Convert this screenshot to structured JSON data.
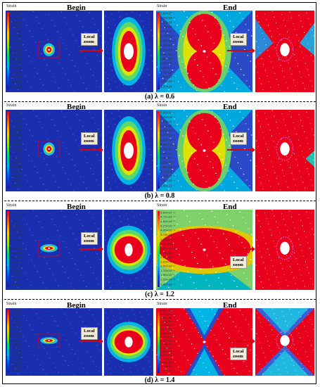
{
  "panels": [
    {
      "begin": "Begin",
      "end": "End",
      "caption": "(a) λ = 0.6",
      "strain_label": "Strain",
      "zoom_label_1": "Local",
      "zoom_label_2": "zoom"
    },
    {
      "begin": "Begin",
      "end": "End",
      "caption": "(b) λ = 0.8",
      "strain_label": "Strain",
      "zoom_label_1": "Local",
      "zoom_label_2": "zoom"
    },
    {
      "begin": "Begin",
      "end": "End",
      "caption": "(c) λ = 1.2",
      "strain_label": "Strain",
      "zoom_label_1": "Local",
      "zoom_label_2": "zoom"
    },
    {
      "begin": "Begin",
      "end": "End",
      "caption": "(d) λ = 1.4",
      "strain_label": "Strain",
      "zoom_label_1": "Local",
      "zoom_label_2": "zoom"
    }
  ],
  "colorbar_ticks": [
    "5.00×10⁻⁴",
    "4.75×10⁻⁴",
    "4.50×10⁻⁴",
    "4.25×10⁻⁴",
    "4.00×10⁻⁴",
    "3.75×10⁻⁴",
    "3.50×10⁻⁴",
    "3.25×10⁻⁴",
    "3.00×10⁻⁴",
    "2.75×10⁻⁴",
    "2.50×10⁻⁴",
    "2.25×10⁻⁴",
    "2.00×10⁻⁴",
    "1.75×10⁻⁴",
    "1.50×10⁻⁴",
    "1.25×10⁻⁴",
    "1.00×10⁻⁴"
  ]
}
